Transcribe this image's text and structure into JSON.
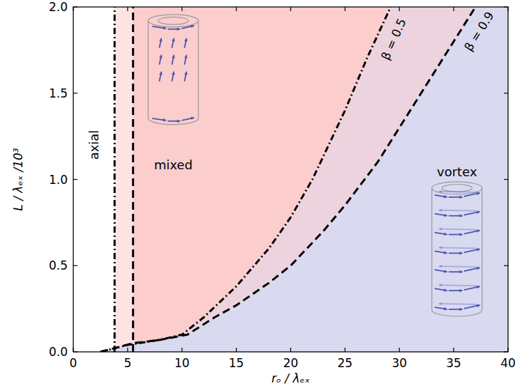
{
  "chart_data": {
    "type": "line",
    "xlabel": "rₒ / λₑₓ",
    "ylabel": "L / λₑₓ /10³",
    "xlim": [
      0,
      40
    ],
    "ylim": [
      0,
      2.0
    ],
    "xticks": [
      0,
      5,
      10,
      15,
      20,
      25,
      30,
      35,
      40
    ],
    "yticks": [
      {
        "value": 0,
        "label": "0.0"
      },
      {
        "value": 0.5,
        "label": "0.5"
      },
      {
        "value": 1.0,
        "label": "1.0"
      },
      {
        "value": 1.5,
        "label": "1.5"
      },
      {
        "value": 2.0,
        "label": "2.0"
      }
    ],
    "series": [
      {
        "name": "β = 0.5",
        "line_style": "dashdot",
        "color": "#000000",
        "axial_boundary": 3.8,
        "x": [
          2.5,
          5,
          8,
          10,
          12,
          15,
          18,
          20,
          22,
          25,
          27,
          29.2
        ],
        "values": [
          0,
          0.04,
          0.07,
          0.1,
          0.2,
          0.38,
          0.6,
          0.78,
          1.0,
          1.4,
          1.7,
          2.0
        ]
      },
      {
        "name": "β = 0.9",
        "line_style": "dashed",
        "color": "#000000",
        "axial_boundary": 5.5,
        "x": [
          2.5,
          5.5,
          8,
          10.5,
          13,
          15,
          18,
          20,
          23,
          25,
          28,
          30,
          33,
          35,
          37
        ],
        "values": [
          0,
          0.05,
          0.07,
          0.1,
          0.2,
          0.27,
          0.4,
          0.5,
          0.7,
          0.85,
          1.1,
          1.3,
          1.6,
          1.8,
          2.0
        ]
      }
    ],
    "annotations": [
      "axial",
      "mixed",
      "vortex"
    ]
  }
}
